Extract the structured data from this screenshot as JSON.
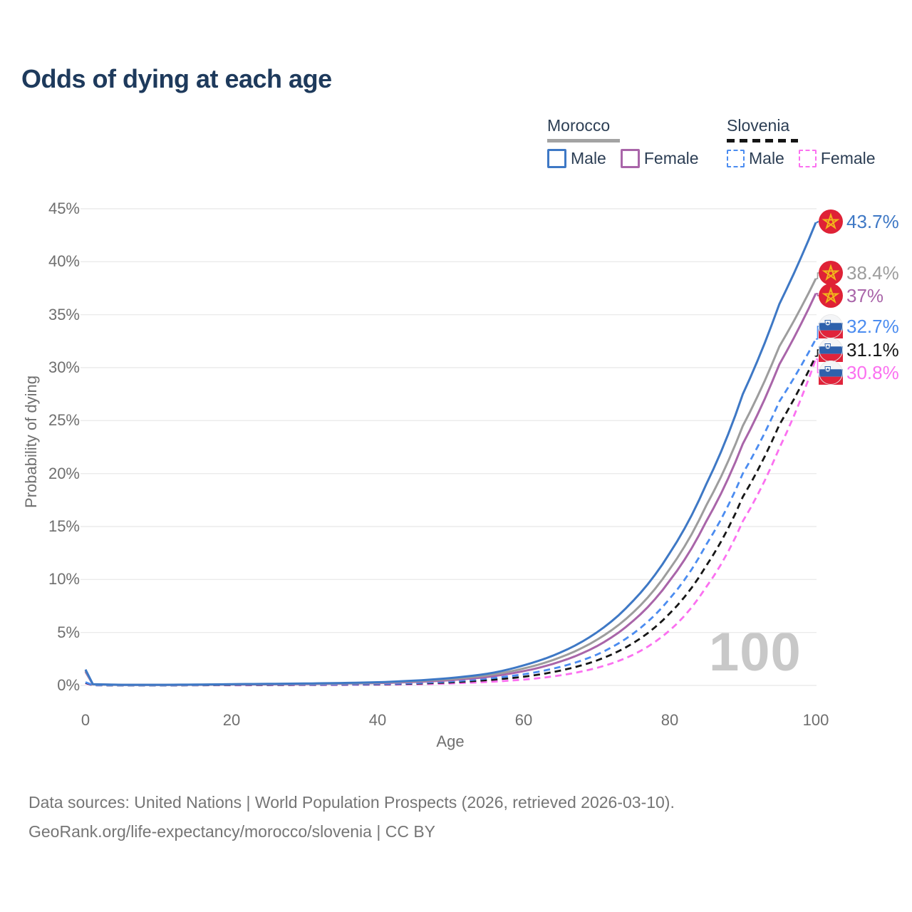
{
  "title": "Odds of dying at each age",
  "watermark": "100",
  "legend": {
    "groups": [
      {
        "country": "Morocco",
        "style": "solid",
        "swatch_color": "#9d9d9d",
        "items": [
          {
            "label": "Male",
            "color": "#3e78c5"
          },
          {
            "label": "Female",
            "color": "#a965a9"
          }
        ]
      },
      {
        "country": "Slovenia",
        "style": "dashed",
        "swatch_color": "#161616",
        "items": [
          {
            "label": "Male",
            "color": "#4b8cf0"
          },
          {
            "label": "Female",
            "color": "#fb70f0"
          }
        ]
      }
    ]
  },
  "footer": {
    "line1": "Data sources: United Nations | World Population Prospects (2026, retrieved 2026-03-10).",
    "line2": "GeoRank.org/life-expectancy/morocco/slovenia | CC BY"
  },
  "chart_data": {
    "type": "line",
    "title": "Odds of dying at each age",
    "xlabel": "Age",
    "ylabel": "Probability of dying",
    "xlim": [
      0,
      100
    ],
    "ylim": [
      0,
      45
    ],
    "grid": "horizontal",
    "x_ticks": [
      0,
      20,
      40,
      60,
      80,
      100
    ],
    "y_ticks": [
      {
        "value": 0,
        "label": "0%"
      },
      {
        "value": 5,
        "label": "5%"
      },
      {
        "value": 10,
        "label": "10%"
      },
      {
        "value": 15,
        "label": "15%"
      },
      {
        "value": 20,
        "label": "20%"
      },
      {
        "value": 25,
        "label": "25%"
      },
      {
        "value": 30,
        "label": "30%"
      },
      {
        "value": 35,
        "label": "35%"
      },
      {
        "value": 40,
        "label": "40%"
      },
      {
        "value": 45,
        "label": "45%"
      }
    ],
    "hovered_age": "100",
    "ages": [
      0,
      1,
      5,
      10,
      15,
      20,
      25,
      30,
      35,
      40,
      45,
      50,
      55,
      60,
      65,
      70,
      75,
      80,
      85,
      90,
      95,
      100
    ],
    "series": [
      {
        "name": "Morocco Male",
        "color": "#3e78c5",
        "dash": false,
        "flag": "morocco",
        "end_label": "43.7%",
        "end_value": 43.7,
        "values": [
          1.5,
          0.12,
          0.06,
          0.06,
          0.08,
          0.12,
          0.15,
          0.18,
          0.23,
          0.3,
          0.45,
          0.7,
          1.1,
          1.9,
          3.1,
          5.0,
          8.0,
          12.5,
          19.0,
          27.5,
          36.0,
          43.7
        ]
      },
      {
        "name": "Morocco Both sexes",
        "color": "#9d9d9d",
        "dash": false,
        "flag": "morocco",
        "end_label": "38.4%",
        "end_value": 38.4,
        "values": [
          1.4,
          0.11,
          0.05,
          0.05,
          0.07,
          0.1,
          0.13,
          0.16,
          0.2,
          0.26,
          0.4,
          0.6,
          0.95,
          1.6,
          2.65,
          4.3,
          6.9,
          11.0,
          17.0,
          24.5,
          32.0,
          38.4
        ]
      },
      {
        "name": "Morocco Female",
        "color": "#a965a9",
        "dash": false,
        "flag": "morocco",
        "end_label": "37%",
        "end_value": 37,
        "values": [
          1.3,
          0.1,
          0.05,
          0.05,
          0.06,
          0.08,
          0.1,
          0.13,
          0.17,
          0.22,
          0.33,
          0.5,
          0.8,
          1.35,
          2.25,
          3.7,
          6.1,
          9.9,
          15.5,
          22.8,
          30.3,
          37.0
        ]
      },
      {
        "name": "Slovenia Male",
        "color": "#4b8cf0",
        "dash": true,
        "flag": "slovenia",
        "end_label": "32.7%",
        "end_value": 32.7,
        "values": [
          0.3,
          0.03,
          0.01,
          0.01,
          0.03,
          0.06,
          0.07,
          0.08,
          0.1,
          0.14,
          0.22,
          0.38,
          0.65,
          1.05,
          1.75,
          2.9,
          4.9,
          8.2,
          13.3,
          20.0,
          26.8,
          32.7
        ]
      },
      {
        "name": "Slovenia Both sexes",
        "color": "#161616",
        "dash": true,
        "flag": "slovenia",
        "end_label": "31.1%",
        "end_value": 31.1,
        "values": [
          0.25,
          0.02,
          0.01,
          0.01,
          0.02,
          0.04,
          0.05,
          0.06,
          0.08,
          0.11,
          0.17,
          0.29,
          0.5,
          0.82,
          1.4,
          2.35,
          4.0,
          6.8,
          11.3,
          17.8,
          24.6,
          31.1
        ]
      },
      {
        "name": "Slovenia Female",
        "color": "#fb70f0",
        "dash": true,
        "flag": "slovenia",
        "end_label": "30.8%",
        "end_value": 30.8,
        "values": [
          0.2,
          0.02,
          0.01,
          0.01,
          0.02,
          0.02,
          0.03,
          0.04,
          0.05,
          0.07,
          0.11,
          0.19,
          0.33,
          0.55,
          0.95,
          1.65,
          2.9,
          5.2,
          9.3,
          15.5,
          22.4,
          30.8
        ]
      }
    ],
    "flag_colors": {
      "morocco_red": "#df2236",
      "morocco_star": "#f1b51c",
      "slovenia_white": "#f4f5f7",
      "slovenia_blue": "#2e61ac",
      "slovenia_red": "#e0243b"
    }
  }
}
